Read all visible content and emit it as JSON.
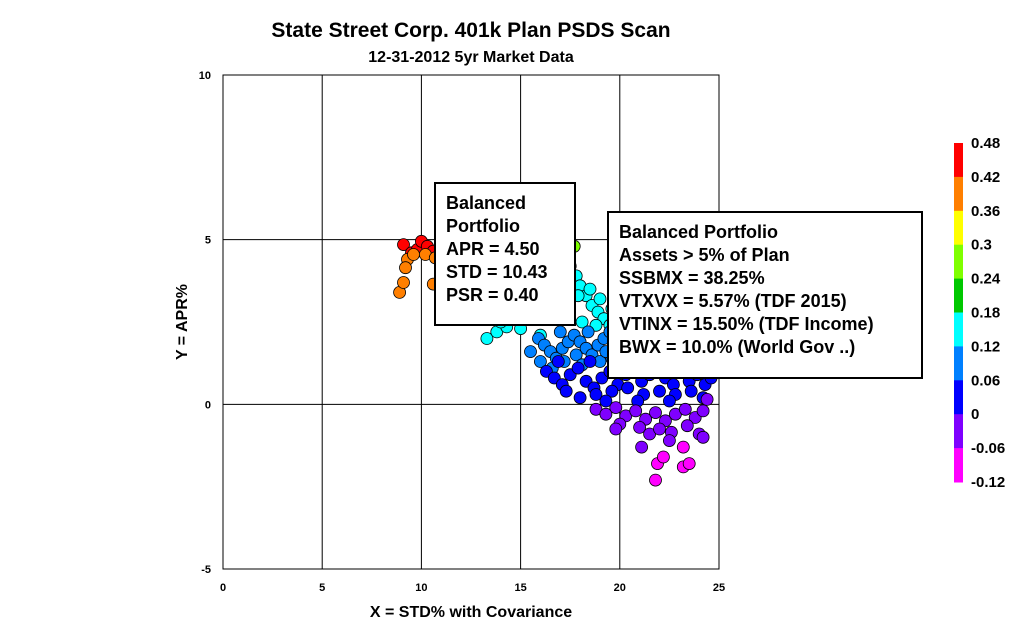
{
  "chart_data": {
    "type": "scatter",
    "title": "State Street Corp. 401k Plan PSDS Scan",
    "subtitle": "12-31-2012 5yr Market Data",
    "xlabel": "X = STD% with Covariance",
    "ylabel": "Y = APR%",
    "xlim": [
      0,
      25
    ],
    "ylim": [
      -5,
      10
    ],
    "xticks": [
      "0",
      "5",
      "10",
      "15",
      "20",
      "25"
    ],
    "yticks": [
      "10",
      "5",
      "0",
      "-5"
    ],
    "grid": true,
    "colorbar": {
      "labels": [
        "0.48",
        "0.42",
        "0.36",
        "0.3",
        "0.24",
        "0.18",
        "0.12",
        "0.06",
        "0",
        "-0.06",
        "-0.12"
      ],
      "colors": [
        "#ff0000",
        "#ff7f00",
        "#ffff00",
        "#7fff00",
        "#00c800",
        "#00ffff",
        "#0080ff",
        "#0000ff",
        "#7f00ff",
        "#ff00ff"
      ]
    },
    "series": [
      {
        "color_value": 0.45,
        "points": [
          [
            9.1,
            4.85
          ],
          [
            9.5,
            4.6
          ],
          [
            9.8,
            4.7
          ],
          [
            10.0,
            4.95
          ],
          [
            10.3,
            4.8
          ],
          [
            10.6,
            4.65
          ]
        ]
      },
      {
        "color_value": 0.4,
        "points": [
          [
            9.3,
            4.4
          ],
          [
            9.6,
            4.55
          ],
          [
            10.2,
            4.55
          ],
          [
            10.7,
            4.45
          ],
          [
            9.2,
            4.15
          ]
        ]
      },
      {
        "color_value": 0.38,
        "points": [
          [
            8.9,
            3.4
          ],
          [
            9.1,
            3.7
          ],
          [
            10.6,
            3.65
          ]
        ]
      },
      {
        "color_value": 0.27,
        "points": [
          [
            17.7,
            4.8
          ]
        ]
      },
      {
        "color_value": 0.16,
        "points": [
          [
            13.3,
            2.0
          ],
          [
            13.8,
            2.2
          ],
          [
            14.3,
            2.35
          ],
          [
            14.8,
            2.6
          ],
          [
            15.2,
            2.9
          ],
          [
            15.6,
            3.2
          ],
          [
            16.0,
            3.4
          ],
          [
            16.3,
            3.7
          ],
          [
            16.6,
            4.0
          ],
          [
            16.9,
            4.3
          ],
          [
            17.2,
            4.5
          ],
          [
            17.5,
            4.2
          ],
          [
            17.8,
            3.9
          ],
          [
            18.0,
            3.6
          ],
          [
            18.3,
            3.3
          ],
          [
            18.6,
            3.0
          ],
          [
            18.9,
            2.8
          ],
          [
            19.2,
            2.6
          ],
          [
            19.5,
            2.4
          ],
          [
            16.2,
            2.7
          ],
          [
            16.8,
            2.9
          ],
          [
            17.3,
            3.1
          ],
          [
            17.9,
            3.3
          ],
          [
            18.5,
            3.5
          ],
          [
            19.0,
            3.2
          ],
          [
            14.0,
            2.5
          ],
          [
            15.0,
            2.3
          ],
          [
            16.5,
            3.6
          ],
          [
            17.1,
            3.8
          ],
          [
            18.1,
            2.5
          ],
          [
            15.4,
            2.6
          ],
          [
            16.0,
            2.1
          ],
          [
            17.4,
            2.6
          ],
          [
            18.8,
            2.4
          ],
          [
            19.6,
            2.9
          ]
        ]
      },
      {
        "color_value": 0.09,
        "points": [
          [
            15.9,
            2.0
          ],
          [
            16.2,
            1.8
          ],
          [
            16.5,
            1.6
          ],
          [
            16.8,
            1.4
          ],
          [
            17.1,
            1.7
          ],
          [
            17.4,
            1.9
          ],
          [
            17.7,
            2.1
          ],
          [
            18.0,
            1.9
          ],
          [
            18.3,
            1.7
          ],
          [
            18.6,
            1.5
          ],
          [
            18.9,
            1.8
          ],
          [
            19.2,
            2.0
          ],
          [
            19.5,
            2.2
          ],
          [
            19.8,
            1.9
          ],
          [
            20.1,
            1.6
          ],
          [
            16.0,
            1.3
          ],
          [
            16.6,
            1.1
          ],
          [
            17.2,
            1.3
          ],
          [
            17.8,
            1.5
          ],
          [
            18.4,
            2.2
          ],
          [
            19.0,
            1.3
          ],
          [
            19.6,
            1.4
          ],
          [
            20.2,
            1.9
          ],
          [
            20.5,
            1.5
          ],
          [
            15.5,
            1.6
          ],
          [
            17.0,
            2.2
          ],
          [
            18.1,
            1.2
          ],
          [
            19.3,
            1.6
          ]
        ]
      },
      {
        "color_value": 0.02,
        "points": [
          [
            16.3,
            1.0
          ],
          [
            16.7,
            0.8
          ],
          [
            17.1,
            0.6
          ],
          [
            17.5,
            0.9
          ],
          [
            17.9,
            1.1
          ],
          [
            18.3,
            0.7
          ],
          [
            18.7,
            0.5
          ],
          [
            19.1,
            0.8
          ],
          [
            19.5,
            1.0
          ],
          [
            19.9,
            0.6
          ],
          [
            20.3,
            0.9
          ],
          [
            20.7,
            1.1
          ],
          [
            21.1,
            0.7
          ],
          [
            21.5,
            0.9
          ],
          [
            21.9,
            1.2
          ],
          [
            22.3,
            0.8
          ],
          [
            22.7,
            0.6
          ],
          [
            23.1,
            1.0
          ],
          [
            23.5,
            0.7
          ],
          [
            23.9,
            0.9
          ],
          [
            24.3,
            0.6
          ],
          [
            24.6,
            0.8
          ],
          [
            17.3,
            0.4
          ],
          [
            18.0,
            0.2
          ],
          [
            18.8,
            0.3
          ],
          [
            19.6,
            0.4
          ],
          [
            20.4,
            0.5
          ],
          [
            21.2,
            0.3
          ],
          [
            22.0,
            0.4
          ],
          [
            22.8,
            0.3
          ],
          [
            23.6,
            0.4
          ],
          [
            24.2,
            0.2
          ],
          [
            16.9,
            1.3
          ],
          [
            18.5,
            1.3
          ],
          [
            20.0,
            1.3
          ],
          [
            21.6,
            1.4
          ],
          [
            23.2,
            1.3
          ],
          [
            24.4,
            1.1
          ],
          [
            19.3,
            0.1
          ],
          [
            20.9,
            0.1
          ],
          [
            22.5,
            0.1
          ]
        ]
      },
      {
        "color_value": -0.04,
        "points": [
          [
            18.8,
            -0.15
          ],
          [
            19.3,
            -0.3
          ],
          [
            19.8,
            -0.1
          ],
          [
            20.3,
            -0.35
          ],
          [
            20.8,
            -0.2
          ],
          [
            21.3,
            -0.45
          ],
          [
            21.8,
            -0.25
          ],
          [
            22.3,
            -0.5
          ],
          [
            22.8,
            -0.3
          ],
          [
            23.3,
            -0.15
          ],
          [
            23.8,
            -0.4
          ],
          [
            24.2,
            -0.2
          ],
          [
            20.0,
            -0.6
          ],
          [
            21.0,
            -0.7
          ],
          [
            21.5,
            -0.9
          ],
          [
            22.0,
            -0.75
          ],
          [
            22.6,
            -0.85
          ],
          [
            23.4,
            -0.65
          ],
          [
            24.0,
            -0.9
          ],
          [
            24.2,
            -1.0
          ],
          [
            19.8,
            -0.75
          ],
          [
            21.1,
            -1.3
          ],
          [
            22.5,
            -1.1
          ],
          [
            24.4,
            0.15
          ]
        ]
      },
      {
        "color_value": -0.1,
        "points": [
          [
            21.8,
            -2.3
          ],
          [
            21.9,
            -1.8
          ],
          [
            22.2,
            -1.6
          ],
          [
            23.2,
            -1.3
          ],
          [
            23.2,
            -1.9
          ],
          [
            23.5,
            -1.8
          ]
        ]
      }
    ],
    "annotations": [
      {
        "lines": [
          "Balanced",
          "Portfolio",
          "APR = 4.50",
          "STD = 10.43",
          "PSR = 0.40"
        ]
      },
      {
        "lines": [
          "Balanced Portfolio",
          "Assets > 5% of Plan",
          "SSBMX = 38.25%",
          "VTXVX = 5.57% (TDF 2015)",
          "VTINX = 15.50% (TDF Income)",
          "BWX = 10.0% (World Gov ..)"
        ]
      }
    ]
  }
}
